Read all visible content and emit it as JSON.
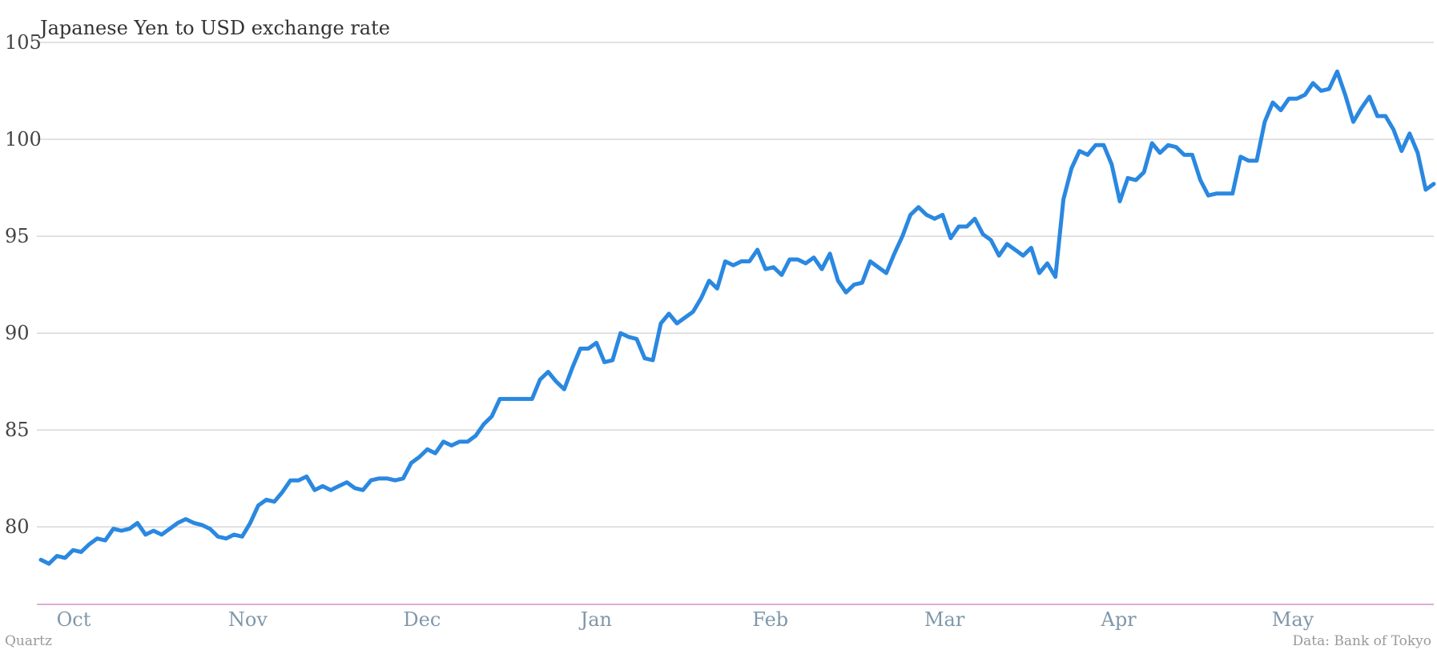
{
  "chart_data": {
    "type": "line",
    "title": "Japanese Yen to USD exchange rate",
    "xlabel": "",
    "ylabel": "",
    "ylim": [
      76,
      105
    ],
    "yticks": [
      80,
      85,
      90,
      95,
      100,
      105
    ],
    "xticks": [
      "Oct",
      "Nov",
      "Dec",
      "Jan",
      "Feb",
      "Mar",
      "Apr",
      "May"
    ],
    "grid": true,
    "legend": "none",
    "series": [
      {
        "color": "#2a88e0",
        "values": [
          78.3,
          78.1,
          78.5,
          78.4,
          78.8,
          78.7,
          79.1,
          79.4,
          79.3,
          79.9,
          79.8,
          79.9,
          80.2,
          79.6,
          79.8,
          79.6,
          79.9,
          80.2,
          80.4,
          80.2,
          80.1,
          79.9,
          79.5,
          79.4,
          79.6,
          79.5,
          80.2,
          81.1,
          81.4,
          81.3,
          81.8,
          82.4,
          82.4,
          82.6,
          81.9,
          82.1,
          81.9,
          82.1,
          82.3,
          82.0,
          81.9,
          82.4,
          82.5,
          82.5,
          82.4,
          82.5,
          83.3,
          83.6,
          84.0,
          83.8,
          84.4,
          84.2,
          84.4,
          84.4,
          84.7,
          85.3,
          85.7,
          86.6,
          86.6,
          86.6,
          86.6,
          86.6,
          87.6,
          88.0,
          87.5,
          87.1,
          88.2,
          89.2,
          89.2,
          89.5,
          88.5,
          88.6,
          90.0,
          89.8,
          89.7,
          88.7,
          88.6,
          90.5,
          91.0,
          90.5,
          90.8,
          91.1,
          91.8,
          92.7,
          92.3,
          93.7,
          93.5,
          93.7,
          93.7,
          94.3,
          93.3,
          93.4,
          93.0,
          93.8,
          93.8,
          93.6,
          93.9,
          93.3,
          94.1,
          92.7,
          92.1,
          92.5,
          92.6,
          93.7,
          93.4,
          93.1,
          94.1,
          95.0,
          96.1,
          96.5,
          96.1,
          95.9,
          96.1,
          94.9,
          95.5,
          95.5,
          95.9,
          95.1,
          94.8,
          94.0,
          94.6,
          94.3,
          94.0,
          94.4,
          93.1,
          93.6,
          92.9,
          96.9,
          98.5,
          99.4,
          99.2,
          99.7,
          99.7,
          98.7,
          96.8,
          98.0,
          97.9,
          98.3,
          99.8,
          99.3,
          99.7,
          99.6,
          99.2,
          99.2,
          97.9,
          97.1,
          97.2,
          97.2,
          97.2,
          99.1,
          98.9,
          98.9,
          100.9,
          101.9,
          101.5,
          102.1,
          102.1,
          102.3,
          102.9,
          102.5,
          102.6,
          103.5,
          102.3,
          100.9,
          101.6,
          102.2,
          101.2,
          101.2,
          100.5,
          99.4,
          100.3,
          99.3,
          97.4,
          97.7
        ]
      }
    ]
  },
  "footer": {
    "source_left": "Quartz",
    "source_right": "Data: Bank of Tokyo"
  }
}
